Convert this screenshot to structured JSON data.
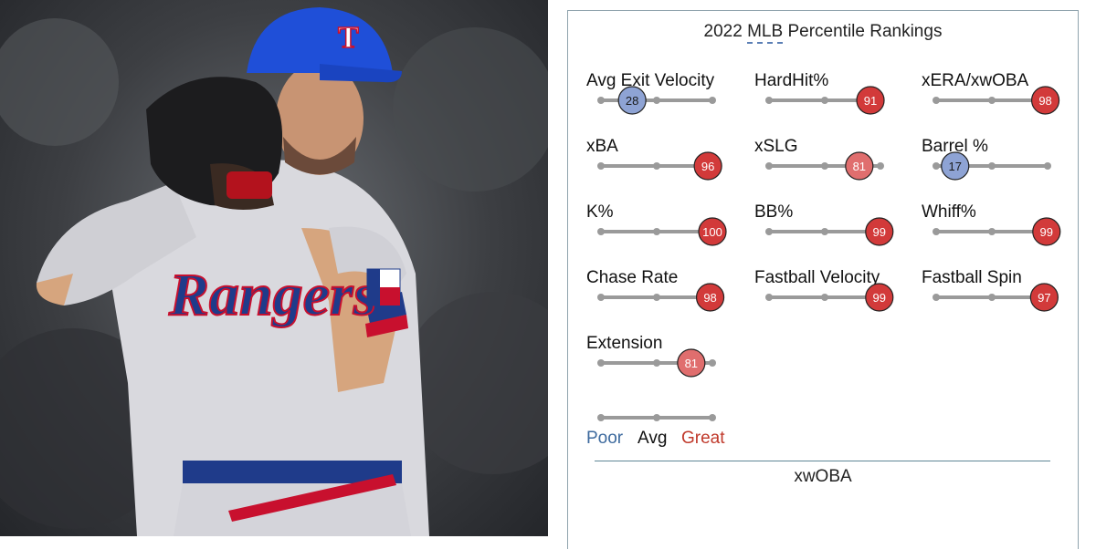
{
  "photo": {
    "subject": "Texas Rangers pitcher in set position",
    "cap_letter": "T",
    "jersey_text": "Rangers"
  },
  "title": {
    "prefix": "2022",
    "abbr": "MLB",
    "rest": " Percentile Rankings"
  },
  "colors": {
    "poor": "#3d6a9e",
    "great": "#c0392b",
    "low_bubble": "#8ea3d4",
    "mid_high": "#e06e6e",
    "high": "#d23a3a",
    "track": "#999999"
  },
  "chart_data": {
    "type": "table",
    "title": "2022 MLB Percentile Rankings",
    "scale": [
      0,
      100
    ],
    "metrics": [
      {
        "name": "Avg Exit Velocity",
        "percentile": 28
      },
      {
        "name": "HardHit%",
        "percentile": 91
      },
      {
        "name": "xERA/xwOBA",
        "percentile": 98
      },
      {
        "name": "xBA",
        "percentile": 96
      },
      {
        "name": "xSLG",
        "percentile": 81
      },
      {
        "name": "Barrel %",
        "percentile": 17
      },
      {
        "name": "K%",
        "percentile": 100
      },
      {
        "name": "BB%",
        "percentile": 99
      },
      {
        "name": "Whiff%",
        "percentile": 99
      },
      {
        "name": "Chase Rate",
        "percentile": 98
      },
      {
        "name": "Fastball Velocity",
        "percentile": 99
      },
      {
        "name": "Fastball Spin",
        "percentile": 97
      },
      {
        "name": "Extension",
        "percentile": 81
      }
    ],
    "legend": {
      "poor": "Poor",
      "avg": "Avg",
      "great": "Great"
    },
    "footer": "xwOBA"
  }
}
